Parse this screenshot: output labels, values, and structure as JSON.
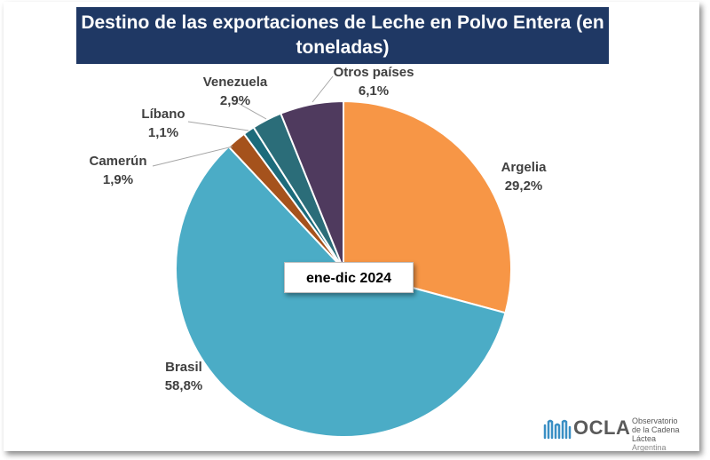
{
  "chart_data": {
    "type": "pie",
    "title": "Destino de las exportaciones de Leche en Polvo Entera (en toneladas)",
    "period": "ene-dic 2024",
    "slices": [
      {
        "name": "Argelia",
        "value": 29.2,
        "label": "29,2%",
        "color": "#f79646"
      },
      {
        "name": "Brasil",
        "value": 58.8,
        "label": "58,8%",
        "color": "#4bacc6"
      },
      {
        "name": "Camerún",
        "value": 1.9,
        "label": "1,9%",
        "color": "#a5521c"
      },
      {
        "name": "Líbano",
        "value": 1.1,
        "label": "1,1%",
        "color": "#1c6b7b"
      },
      {
        "name": "Venezuela",
        "value": 2.9,
        "label": "2,9%",
        "color": "#2b6d79"
      },
      {
        "name": "Otros países",
        "value": 6.1,
        "label": "6,1%",
        "color": "#4f3a5e"
      }
    ]
  },
  "logo": {
    "name": "OCLA",
    "line1": "Observatorio",
    "line2": "de la Cadena Láctea",
    "line3": "Argentina",
    "color": "#3a8fc4"
  }
}
